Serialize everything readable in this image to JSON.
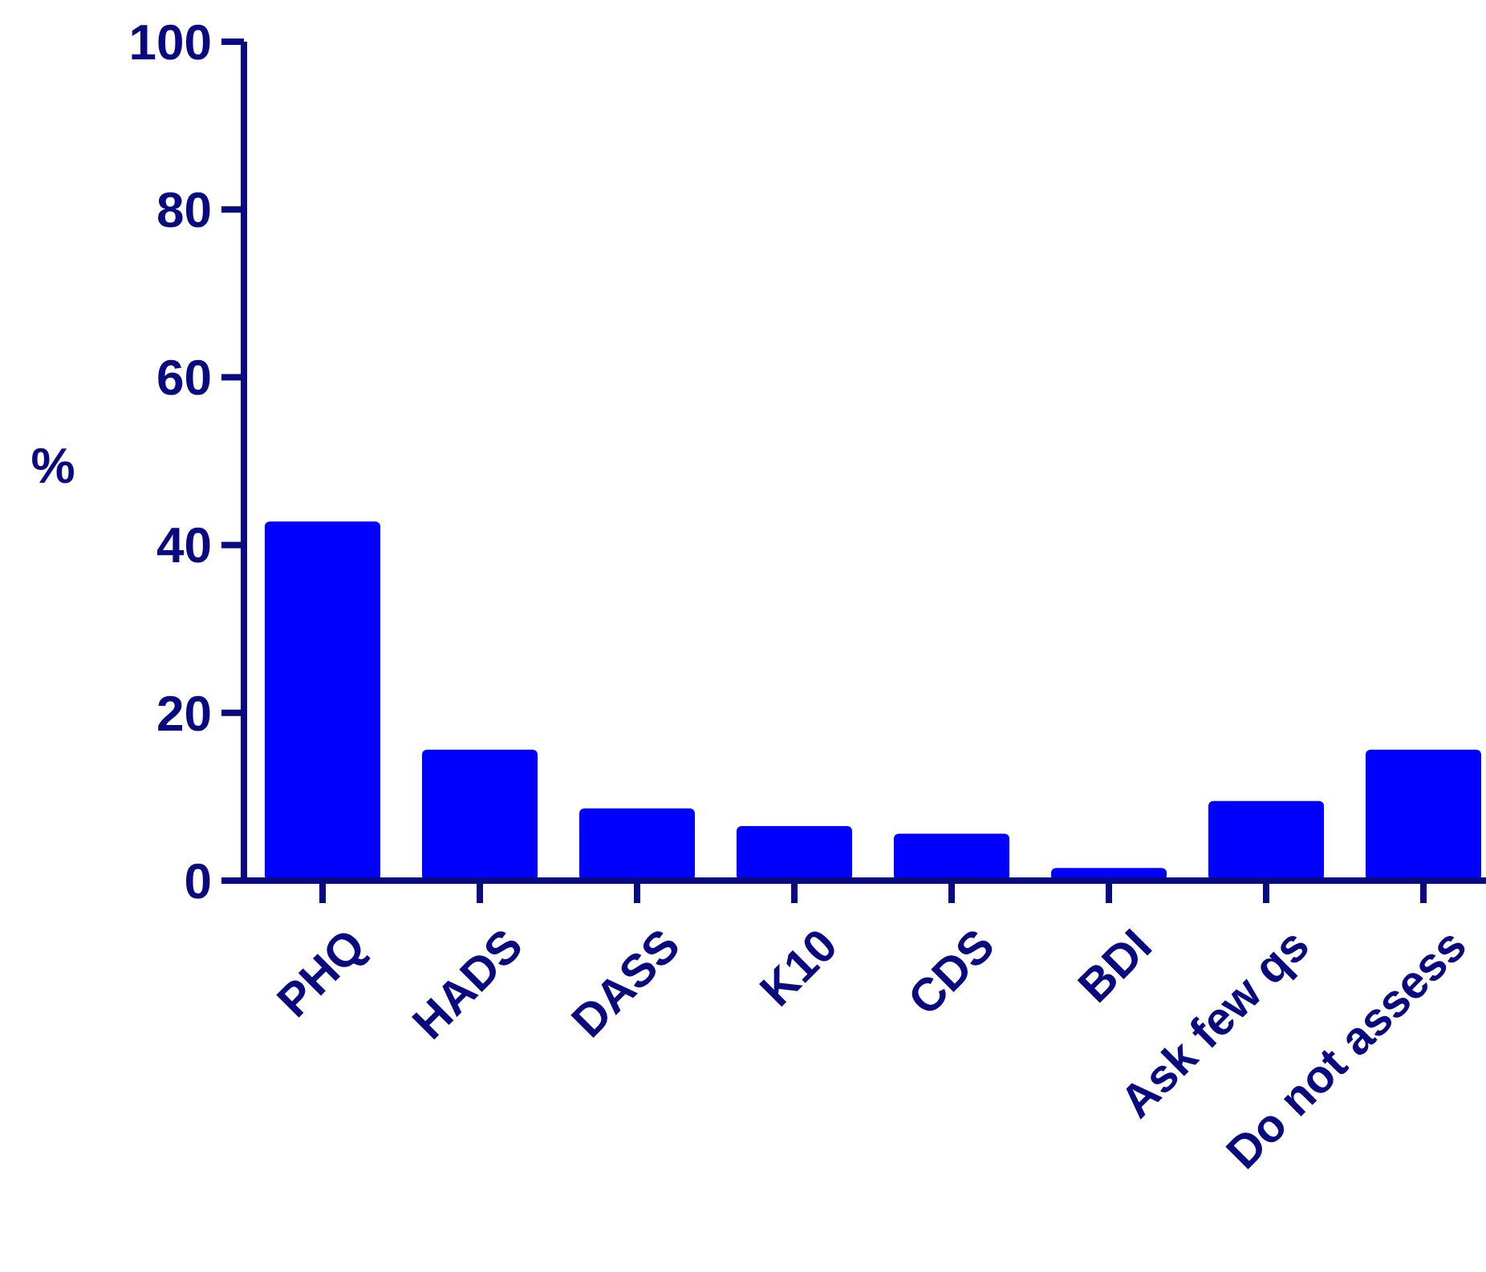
{
  "chart_data": {
    "type": "bar",
    "ylabel": "%",
    "categories": [
      "PHQ",
      "HADS",
      "DASS",
      "K10",
      "CDS",
      "BDI",
      "Ask few qs",
      "Do not assess"
    ],
    "values": [
      42.8,
      15.6,
      8.6,
      6.5,
      5.6,
      1.5,
      9.5,
      15.6
    ],
    "color": "#0000ff",
    "ylim": [
      0,
      100
    ],
    "yticks": [
      0,
      20,
      40,
      60,
      80,
      100
    ],
    "grid": false
  }
}
